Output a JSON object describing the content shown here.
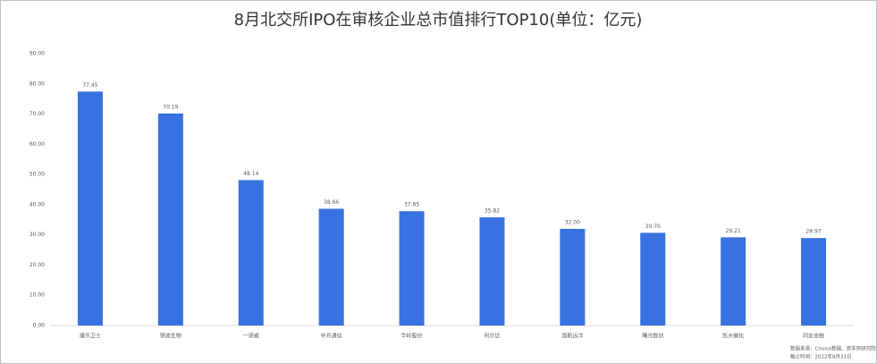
{
  "chart_data": {
    "type": "bar",
    "title": "8月北交所IPO在审核企业总市值排行TOP10(单位：亿元)",
    "categories": [
      "康乐卫士",
      "锦波生物",
      "一诺威",
      "中兵通信",
      "华岭股份",
      "利尔达",
      "国航远洋",
      "曙光数创",
      "凯大催化",
      "同友金融"
    ],
    "values": [
      77.45,
      70.19,
      48.14,
      38.66,
      37.85,
      35.82,
      32.0,
      30.7,
      29.21,
      28.97
    ],
    "value_labels": [
      "77.45",
      "70.19",
      "48.14",
      "38.66",
      "37.85",
      "35.82",
      "32.00",
      "30.70",
      "29.21",
      "28.97"
    ],
    "color": "#3871e0",
    "ylim": [
      0,
      90
    ],
    "yticks": [
      {
        "value": 0,
        "label": "0.00"
      },
      {
        "value": 10,
        "label": "10.00"
      },
      {
        "value": 20,
        "label": "20.00"
      },
      {
        "value": 30,
        "label": "30.00"
      },
      {
        "value": 40,
        "label": "40.00"
      },
      {
        "value": 50,
        "label": "50.00"
      },
      {
        "value": 60,
        "label": "60.00"
      },
      {
        "value": 70,
        "label": "70.00"
      },
      {
        "value": 80,
        "label": "80.00"
      },
      {
        "value": 90,
        "label": "90.00"
      }
    ],
    "grid": false,
    "notes": [
      "数据来源：Choice数据、资本邦研究院",
      "截止时间：2022年8月31日"
    ]
  }
}
